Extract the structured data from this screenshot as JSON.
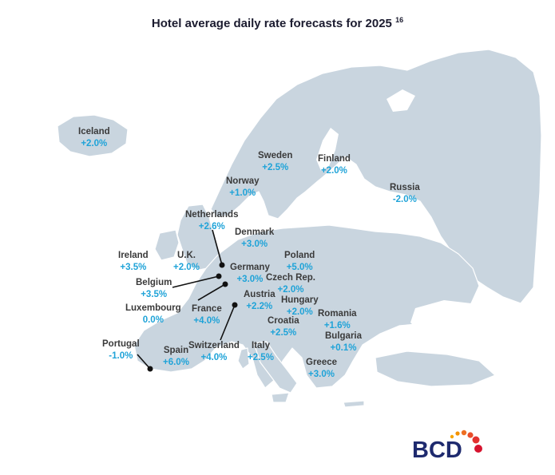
{
  "title": "Hotel average daily rate forecasts for 2025",
  "title_ref": "16",
  "colors": {
    "land": "#c9d5df",
    "border": "#ffffff",
    "name": "#3a3a3a",
    "value": "#1fa3d8",
    "brand": "#1e2a6e"
  },
  "logo": {
    "text": "BCD"
  },
  "countries": [
    {
      "name": "Iceland",
      "value": "+2.0%"
    },
    {
      "name": "Sweden",
      "value": "+2.5%"
    },
    {
      "name": "Finland",
      "value": "+2.0%"
    },
    {
      "name": "Norway",
      "value": "+1.0%"
    },
    {
      "name": "Russia",
      "value": "-2.0%"
    },
    {
      "name": "Netherlands",
      "value": "+2.6%"
    },
    {
      "name": "Denmark",
      "value": "+3.0%"
    },
    {
      "name": "Ireland",
      "value": "+3.5%"
    },
    {
      "name": "U.K.",
      "value": "+2.0%"
    },
    {
      "name": "Poland",
      "value": "+5.0%"
    },
    {
      "name": "Germany",
      "value": "+3.0%"
    },
    {
      "name": "Czech Rep.",
      "value": "+2.0%"
    },
    {
      "name": "Belgium",
      "value": "+3.5%"
    },
    {
      "name": "Austria",
      "value": "+2.2%"
    },
    {
      "name": "Hungary",
      "value": "+2.0%"
    },
    {
      "name": "Luxembourg",
      "value": "0.0%"
    },
    {
      "name": "France",
      "value": "+4.0%"
    },
    {
      "name": "Romania",
      "value": "+1.6%"
    },
    {
      "name": "Croatia",
      "value": "+2.5%"
    },
    {
      "name": "Bulgaria",
      "value": "+0.1%"
    },
    {
      "name": "Portugal",
      "value": "-1.0%"
    },
    {
      "name": "Spain",
      "value": "+6.0%"
    },
    {
      "name": "Switzerland",
      "value": "+4.0%"
    },
    {
      "name": "Italy",
      "value": "+2.5%"
    },
    {
      "name": "Greece",
      "value": "+3.0%"
    }
  ]
}
